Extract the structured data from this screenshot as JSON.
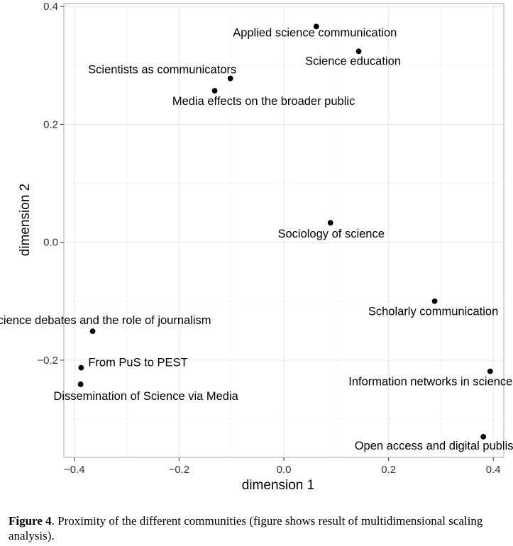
{
  "chart_data": {
    "type": "scatter",
    "title": "",
    "xlabel": "dimension 1",
    "ylabel": "dimension 2",
    "xlim": [
      -0.42,
      0.42
    ],
    "ylim": [
      -0.365,
      0.405
    ],
    "x_ticks": [
      -0.4,
      -0.2,
      0.0,
      0.2,
      0.4
    ],
    "x_tick_labels": [
      "−0.4",
      "−0.2",
      "0.0",
      "0.2",
      "0.4"
    ],
    "y_ticks": [
      -0.2,
      0.0,
      0.2,
      0.4
    ],
    "y_tick_labels": [
      "−0.2",
      "0.0",
      "0.2",
      "0.4"
    ],
    "grid": true,
    "legend": "none",
    "points": [
      {
        "label": "Applied science communication",
        "x": 0.062,
        "y": 0.366
      },
      {
        "label": "Science education",
        "x": 0.143,
        "y": 0.324
      },
      {
        "label": "Scientists as communicators",
        "x": -0.102,
        "y": 0.278
      },
      {
        "label": "Media effects on the broader public",
        "x": -0.132,
        "y": 0.257
      },
      {
        "label": "Sociology of science",
        "x": 0.089,
        "y": 0.033
      },
      {
        "label": "Scholarly communication",
        "x": 0.288,
        "y": -0.1
      },
      {
        "label": "Science debates and the role of journalism",
        "x": -0.365,
        "y": -0.151
      },
      {
        "label": "From PuS to PEST",
        "x": -0.387,
        "y": -0.213
      },
      {
        "label": "Information networks in science",
        "x": 0.394,
        "y": -0.219
      },
      {
        "label": "Dissemination of Science via Media",
        "x": -0.388,
        "y": -0.241
      },
      {
        "label": "Open access and digital publishing",
        "x": 0.381,
        "y": -0.33
      }
    ]
  },
  "caption": {
    "label": "Figure 4",
    "text": ". Proximity of the different communities (figure shows result of multidimensional scaling analysis)."
  }
}
